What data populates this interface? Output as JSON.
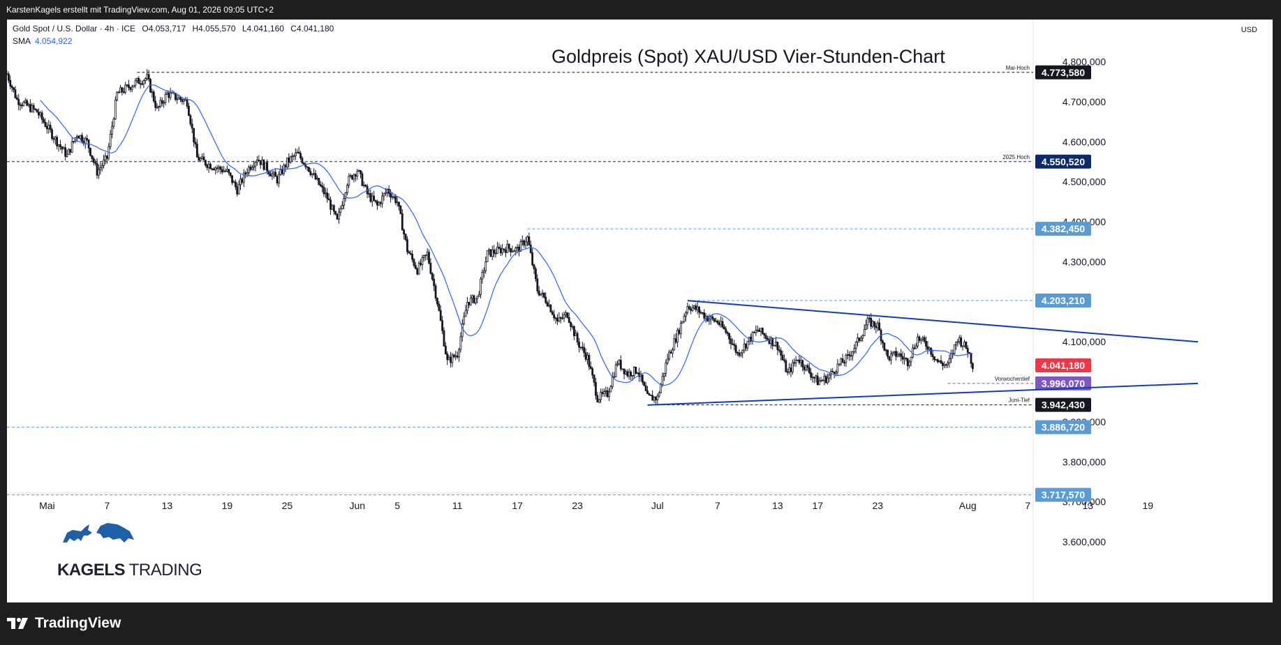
{
  "header": {
    "attribution": "KarstenKagels erstellt mit TradingView.com, Aug 01, 2026 09:05 UTC+2"
  },
  "legend": {
    "symbol": "Gold Spot / U.S. Dollar · 4h · ICE",
    "open": "O4.053,717",
    "high": "H4.055,570",
    "low": "L4.041,160",
    "close": "C4.041,180",
    "sma_label": "SMA",
    "sma_value": "4.054,922"
  },
  "currency": "USD",
  "logo": {
    "text_bold": "KAGELS",
    "text_rest": " TRADING"
  },
  "footer": {
    "brand": "TradingView"
  },
  "colors": {
    "up": "#089981",
    "down": "#f23645",
    "candle": "#131722",
    "sma": "#2962ff",
    "trendline": "#0d3fb8",
    "hline_blue": "#5b9bd5",
    "hline_black": "#131722"
  },
  "chart_data": {
    "type": "candlestick",
    "title": "Goldpreis (Spot) XAU/USD Vier-Stunden-Chart",
    "timeframe": "4h",
    "x_ticks": [
      "Mai",
      "7",
      "13",
      "19",
      "25",
      "Jun",
      "5",
      "11",
      "17",
      "23",
      "Jul",
      "7",
      "13",
      "17",
      "23",
      "Aug",
      "7",
      "13",
      "19"
    ],
    "y_ticks": [
      {
        "value": 4800,
        "label": "4.800,000"
      },
      {
        "value": 4700,
        "label": "4.700,000"
      },
      {
        "value": 4600,
        "label": "4.600,000"
      },
      {
        "value": 4500,
        "label": "4.500,000"
      },
      {
        "value": 4400,
        "label": "4.400,000"
      },
      {
        "value": 4300,
        "label": "4.300,000"
      },
      {
        "value": 4100,
        "label": "4.100,000"
      },
      {
        "value": 3900,
        "label": "3.900,000"
      },
      {
        "value": 3800,
        "label": "3.800,000"
      },
      {
        "value": 3700,
        "label": "3.700,000"
      },
      {
        "value": 3600,
        "label": "3.600,000"
      }
    ],
    "ylim": [
      3540,
      4870
    ],
    "price_path": [
      {
        "date": "2026-04-27",
        "price": 4770
      },
      {
        "date": "2026-04-28",
        "price": 4705
      },
      {
        "date": "2026-04-30",
        "price": 4675
      },
      {
        "date": "2026-05-02",
        "price": 4600
      },
      {
        "date": "2026-05-03",
        "price": 4565
      },
      {
        "date": "2026-05-04",
        "price": 4620
      },
      {
        "date": "2026-05-05",
        "price": 4600
      },
      {
        "date": "2026-05-06",
        "price": 4525
      },
      {
        "date": "2026-05-07",
        "price": 4560
      },
      {
        "date": "2026-05-08",
        "price": 4720
      },
      {
        "date": "2026-05-10",
        "price": 4750
      },
      {
        "date": "2026-05-11",
        "price": 4760
      },
      {
        "date": "2026-05-12",
        "price": 4680
      },
      {
        "date": "2026-05-13",
        "price": 4720
      },
      {
        "date": "2026-05-15",
        "price": 4700
      },
      {
        "date": "2026-05-16",
        "price": 4560
      },
      {
        "date": "2026-05-17",
        "price": 4545
      },
      {
        "date": "2026-05-19",
        "price": 4525
      },
      {
        "date": "2026-05-20",
        "price": 4480
      },
      {
        "date": "2026-05-21",
        "price": 4530
      },
      {
        "date": "2026-05-22",
        "price": 4560
      },
      {
        "date": "2026-05-24",
        "price": 4505
      },
      {
        "date": "2026-05-25",
        "price": 4550
      },
      {
        "date": "2026-05-26",
        "price": 4570
      },
      {
        "date": "2026-05-27",
        "price": 4540
      },
      {
        "date": "2026-05-28",
        "price": 4500
      },
      {
        "date": "2026-05-29",
        "price": 4460
      },
      {
        "date": "2026-05-30",
        "price": 4400
      },
      {
        "date": "2026-05-31",
        "price": 4500
      },
      {
        "date": "2026-06-01",
        "price": 4530
      },
      {
        "date": "2026-06-02",
        "price": 4470
      },
      {
        "date": "2026-06-03",
        "price": 4440
      },
      {
        "date": "2026-06-04",
        "price": 4480
      },
      {
        "date": "2026-06-05",
        "price": 4450
      },
      {
        "date": "2026-06-06",
        "price": 4330
      },
      {
        "date": "2026-06-07",
        "price": 4280
      },
      {
        "date": "2026-06-08",
        "price": 4320
      },
      {
        "date": "2026-06-09",
        "price": 4200
      },
      {
        "date": "2026-06-10",
        "price": 4050
      },
      {
        "date": "2026-06-11",
        "price": 4070
      },
      {
        "date": "2026-06-12",
        "price": 4200
      },
      {
        "date": "2026-06-13",
        "price": 4210
      },
      {
        "date": "2026-06-14",
        "price": 4320
      },
      {
        "date": "2026-06-16",
        "price": 4335
      },
      {
        "date": "2026-06-17",
        "price": 4330
      },
      {
        "date": "2026-06-18",
        "price": 4360
      },
      {
        "date": "2026-06-19",
        "price": 4230
      },
      {
        "date": "2026-06-20",
        "price": 4200
      },
      {
        "date": "2026-06-21",
        "price": 4150
      },
      {
        "date": "2026-06-22",
        "price": 4170
      },
      {
        "date": "2026-06-23",
        "price": 4100
      },
      {
        "date": "2026-06-24",
        "price": 4060
      },
      {
        "date": "2026-06-25",
        "price": 3960
      },
      {
        "date": "2026-06-26",
        "price": 3970
      },
      {
        "date": "2026-06-27",
        "price": 4050
      },
      {
        "date": "2026-06-28",
        "price": 4020
      },
      {
        "date": "2026-06-29",
        "price": 4030
      },
      {
        "date": "2026-06-30",
        "price": 3960
      },
      {
        "date": "2026-07-01",
        "price": 3960
      },
      {
        "date": "2026-07-02",
        "price": 4060
      },
      {
        "date": "2026-07-03",
        "price": 4120
      },
      {
        "date": "2026-07-04",
        "price": 4190
      },
      {
        "date": "2026-07-05",
        "price": 4180
      },
      {
        "date": "2026-07-06",
        "price": 4160
      },
      {
        "date": "2026-07-07",
        "price": 4150
      },
      {
        "date": "2026-07-08",
        "price": 4120
      },
      {
        "date": "2026-07-09",
        "price": 4070
      },
      {
        "date": "2026-07-10",
        "price": 4100
      },
      {
        "date": "2026-07-11",
        "price": 4130
      },
      {
        "date": "2026-07-12",
        "price": 4110
      },
      {
        "date": "2026-07-13",
        "price": 4090
      },
      {
        "date": "2026-07-14",
        "price": 4020
      },
      {
        "date": "2026-07-15",
        "price": 4060
      },
      {
        "date": "2026-07-16",
        "price": 4030
      },
      {
        "date": "2026-07-17",
        "price": 4000
      },
      {
        "date": "2026-07-18",
        "price": 4010
      },
      {
        "date": "2026-07-19",
        "price": 4040
      },
      {
        "date": "2026-07-20",
        "price": 4060
      },
      {
        "date": "2026-07-21",
        "price": 4100
      },
      {
        "date": "2026-07-22",
        "price": 4150
      },
      {
        "date": "2026-07-23",
        "price": 4140
      },
      {
        "date": "2026-07-24",
        "price": 4060
      },
      {
        "date": "2026-07-25",
        "price": 4070
      },
      {
        "date": "2026-07-26",
        "price": 4050
      },
      {
        "date": "2026-07-27",
        "price": 4110
      },
      {
        "date": "2026-07-28",
        "price": 4090
      },
      {
        "date": "2026-07-29",
        "price": 4050
      },
      {
        "date": "2026-07-30",
        "price": 4040
      },
      {
        "date": "2026-07-31",
        "price": 4110
      },
      {
        "date": "2026-08-01",
        "price": 4080
      },
      {
        "date": "2026-08-01",
        "price": 4041
      }
    ],
    "horizontal_levels": [
      {
        "value": 4773.58,
        "label": "4.773,580",
        "note": "Mai-Hoch",
        "style": "black"
      },
      {
        "value": 4550.52,
        "label": "4.550,520",
        "note": "2025 Hoch",
        "style": "navy"
      },
      {
        "value": 4382.45,
        "label": "4.382,450",
        "note": "",
        "style": "blue"
      },
      {
        "value": 4203.21,
        "label": "4.203,210",
        "note": "",
        "style": "blue"
      },
      {
        "value": 4041.18,
        "label": "4.041,180",
        "note": "",
        "style": "red"
      },
      {
        "value": 3996.07,
        "label": "3.996,070",
        "note": "Vorwochentief",
        "style": "purple"
      },
      {
        "value": 3942.43,
        "label": "3.942,430",
        "note": "Juni-Tief",
        "style": "black"
      },
      {
        "value": 3886.72,
        "label": "3.886,720",
        "note": "",
        "style": "blue"
      },
      {
        "value": 3717.57,
        "label": "3.717,570",
        "note": "",
        "style": "blue"
      }
    ],
    "trendlines": [
      {
        "name": "upper",
        "from": {
          "date": "2026-07-04",
          "price": 4203
        },
        "to": {
          "date": "2026-08-24",
          "price": 4100
        }
      },
      {
        "name": "lower",
        "from": {
          "date": "2026-06-30",
          "price": 3942
        },
        "to": {
          "date": "2026-08-24",
          "price": 3996
        }
      }
    ]
  }
}
